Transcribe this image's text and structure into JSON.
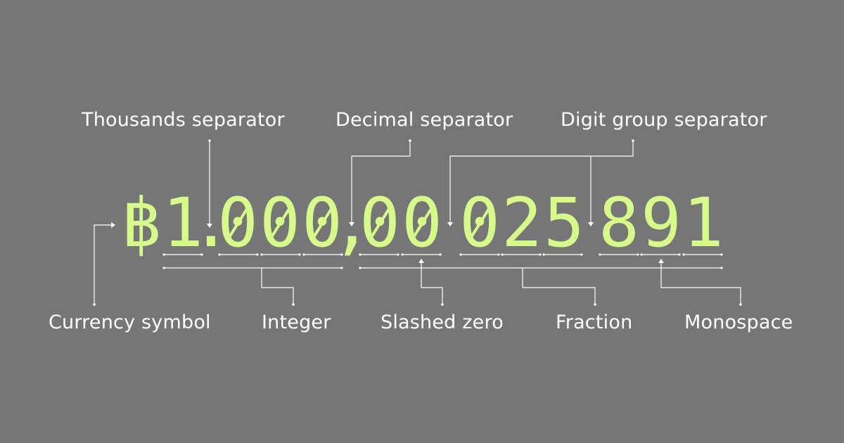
{
  "labels": {
    "thousands_separator": "Thousands separator",
    "decimal_separator": "Decimal separator",
    "digit_group_separator": "Digit group separator",
    "currency_symbol": "Currency symbol",
    "integer": "Integer",
    "slashed_zero": "Slashed zero",
    "fraction": "Fraction",
    "monospace": "Monospace"
  },
  "number": {
    "currency": "฿",
    "d1": "1",
    "thousands": ".",
    "d2": "0",
    "d3": "0",
    "d4": "0",
    "decimal": ",",
    "d5": "0",
    "d6": "0",
    "d7": "0",
    "d8": "2",
    "d9": "5",
    "d10": "8",
    "d11": "9",
    "d12": "1"
  },
  "colors": {
    "background": "#767676",
    "accent": "#d6fb8a",
    "annotation": "#ffffff"
  }
}
